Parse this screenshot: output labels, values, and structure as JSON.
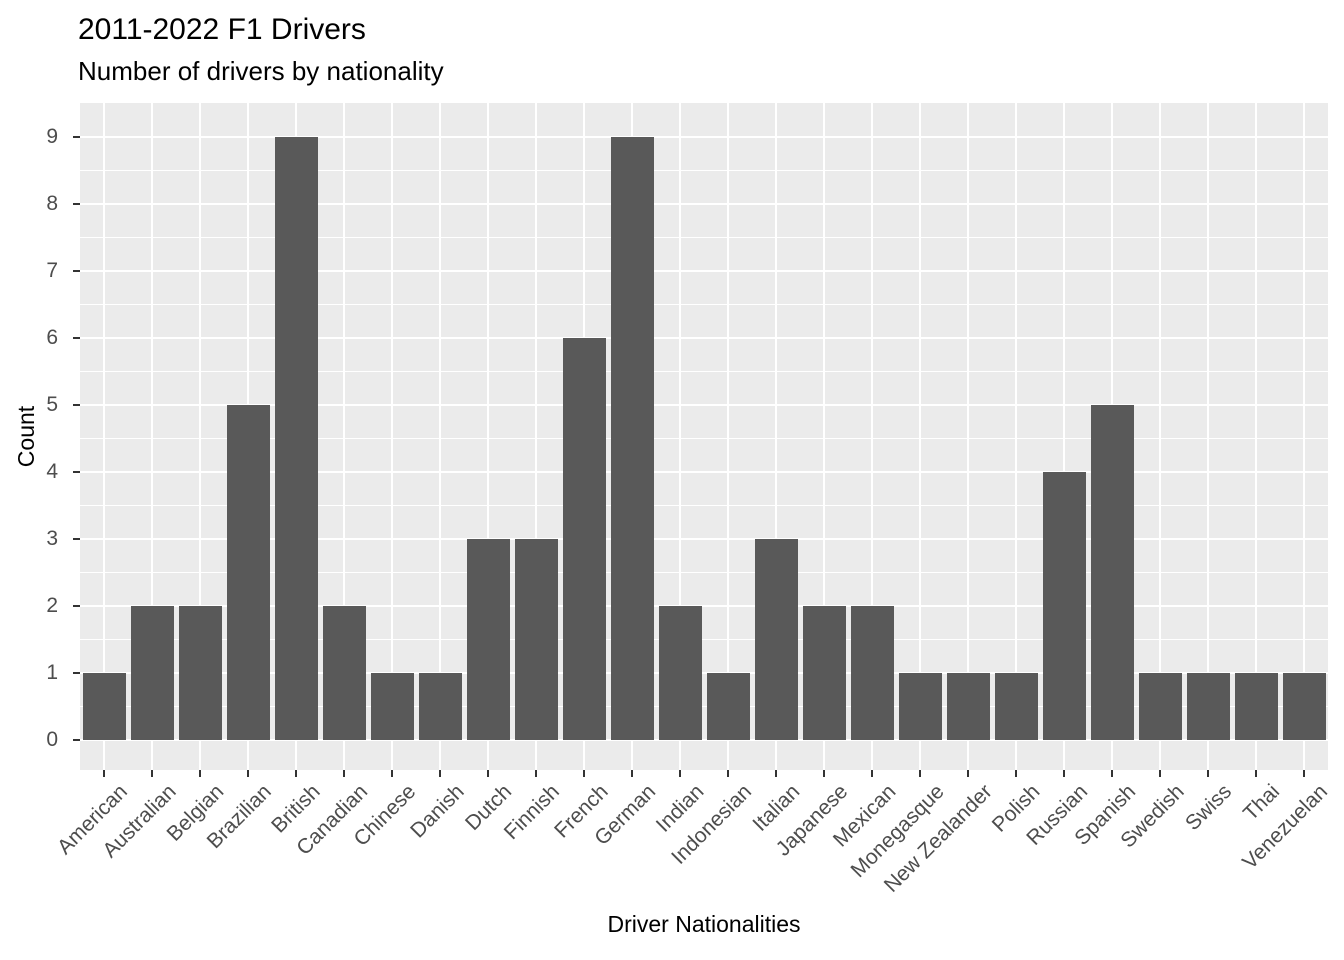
{
  "chart_data": {
    "type": "bar",
    "title": "2011-2022 F1 Drivers",
    "subtitle": "Number of drivers by nationality",
    "xlabel": "Driver Nationalities",
    "ylabel": "Count",
    "categories": [
      "American",
      "Australian",
      "Belgian",
      "Brazilian",
      "British",
      "Canadian",
      "Chinese",
      "Danish",
      "Dutch",
      "Finnish",
      "French",
      "German",
      "Indian",
      "Indonesian",
      "Italian",
      "Japanese",
      "Mexican",
      "Monegasque",
      "New Zealander",
      "Polish",
      "Russian",
      "Spanish",
      "Swedish",
      "Swiss",
      "Thai",
      "Venezuelan"
    ],
    "values": [
      1,
      2,
      2,
      5,
      9,
      2,
      1,
      1,
      3,
      3,
      6,
      9,
      2,
      1,
      3,
      2,
      2,
      1,
      1,
      1,
      4,
      5,
      1,
      1,
      1,
      1
    ],
    "ylim": [
      0,
      9
    ],
    "yticks": [
      0,
      1,
      2,
      3,
      4,
      5,
      6,
      7,
      8,
      9
    ],
    "grid": true,
    "legend": false,
    "x_label_angle_deg": 45,
    "colors": {
      "bar": "#595959",
      "panel_bg": "#EBEBEB",
      "grid": "#FFFFFF",
      "axis_text": "#4D4D4D",
      "tick_mark": "#333333",
      "title_text": "#000000",
      "plot_bg": "#FFFFFF"
    }
  }
}
